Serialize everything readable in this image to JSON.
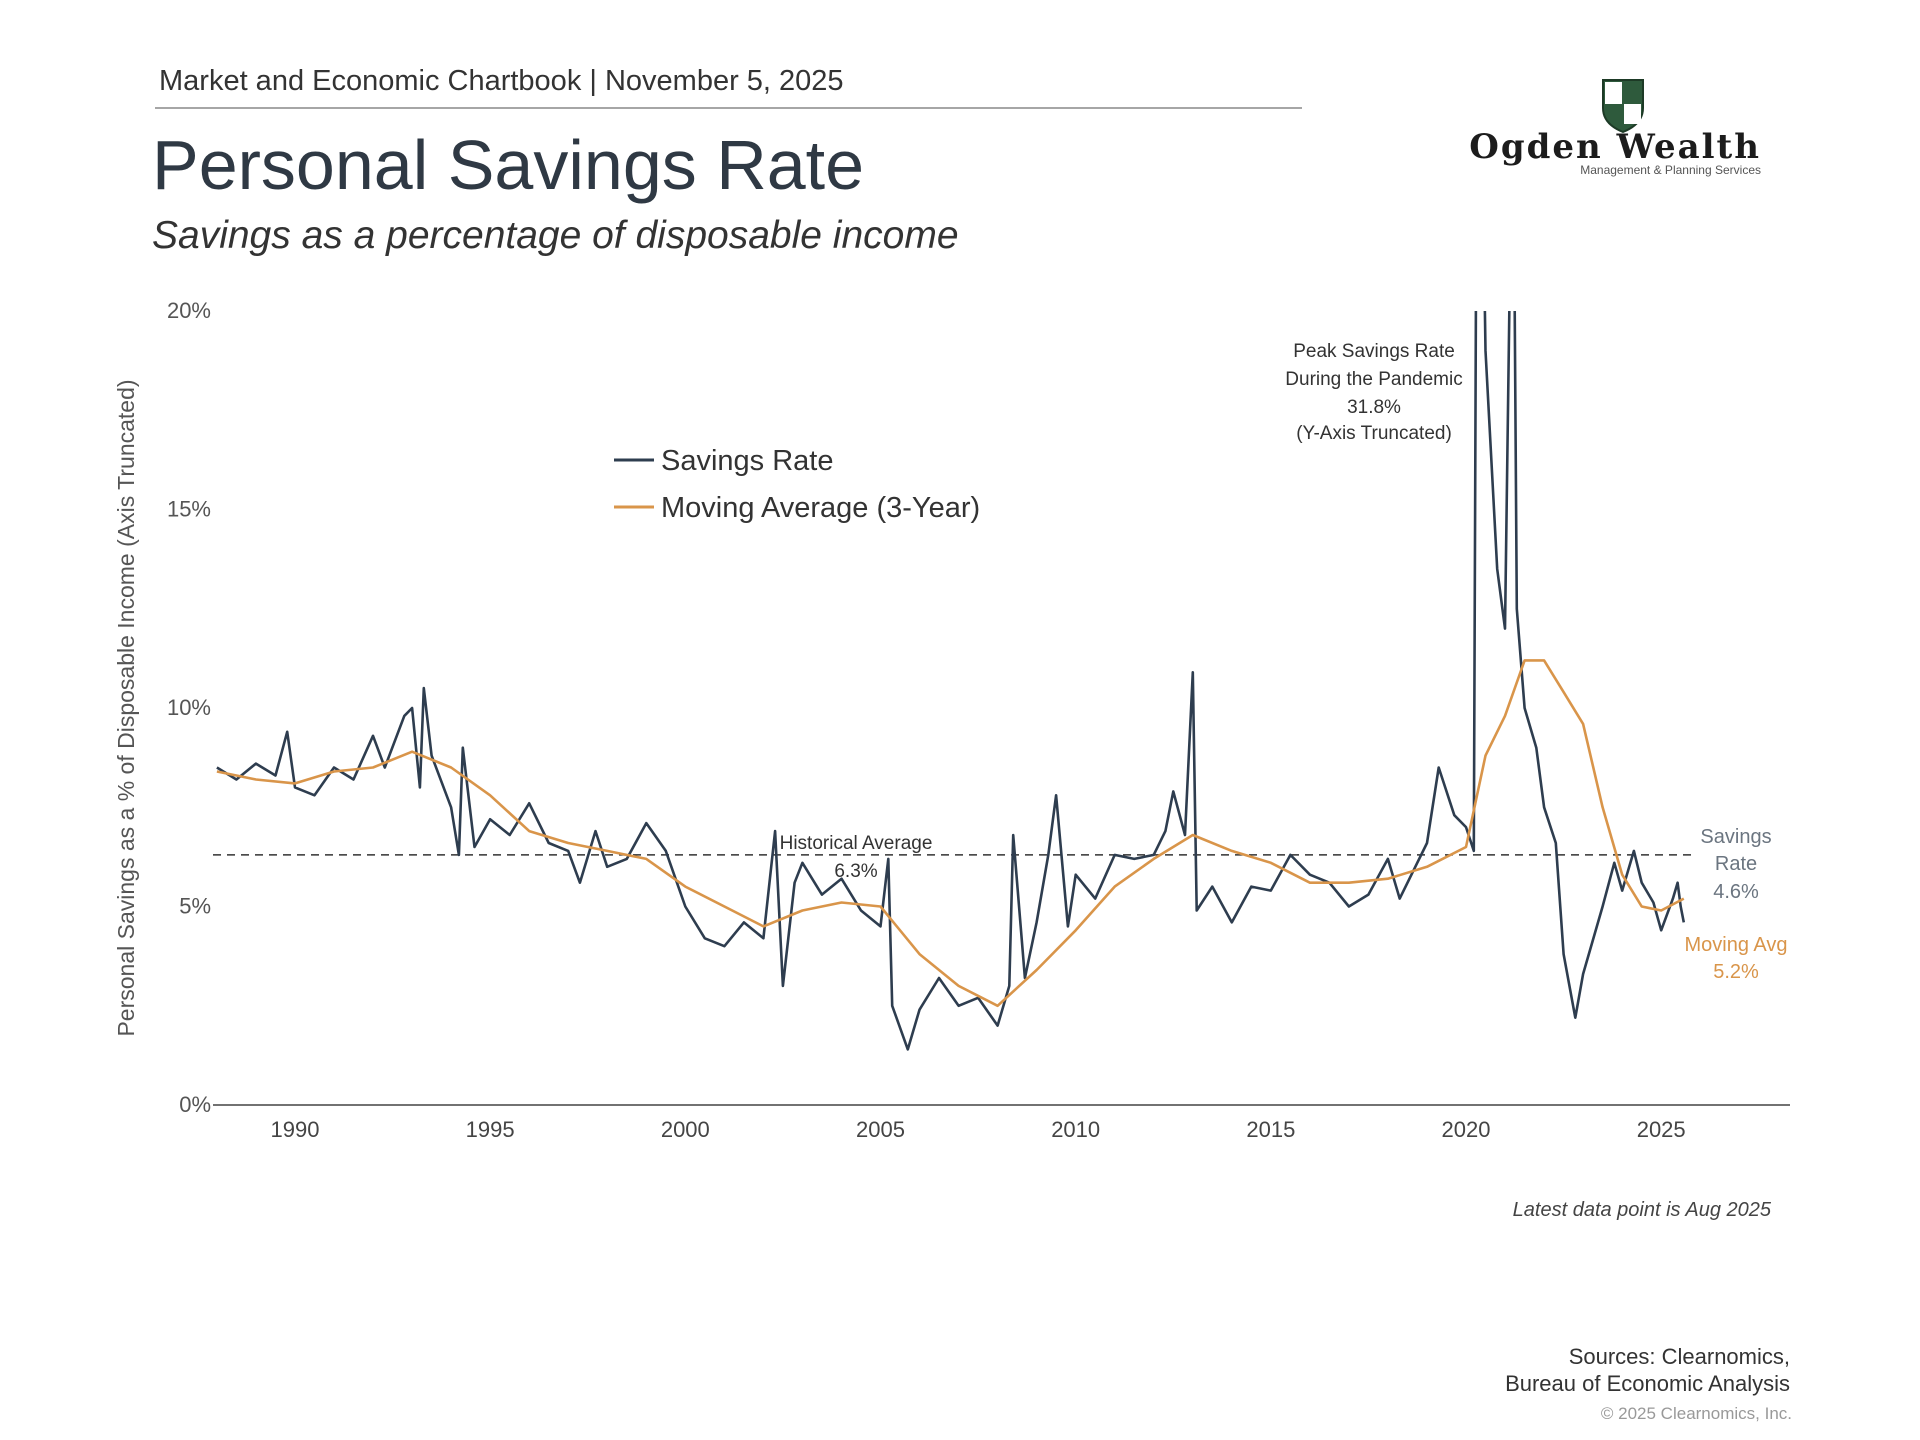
{
  "header": "Market and Economic Chartbook | November 5, 2025",
  "logo": {
    "name": "Ogden Wealth",
    "tagline": "Management & Planning Services"
  },
  "chart_data": {
    "type": "line",
    "title": "Personal Savings Rate",
    "subtitle": "Savings as a percentage of disposable income",
    "y_label": "Personal Savings as a % of Disposable Income (Axis Truncated)",
    "xlim": [
      1987.9,
      2028.3
    ],
    "xticks": [
      1990,
      1995,
      2000,
      2005,
      2010,
      2015,
      2020,
      2025
    ],
    "ylim": [
      0,
      20
    ],
    "yticks": [
      {
        "value": 0,
        "label": "0%"
      },
      {
        "value": 5,
        "label": "5%"
      },
      {
        "value": 10,
        "label": "10%"
      },
      {
        "value": 15,
        "label": "15%"
      },
      {
        "value": 20,
        "label": "20%"
      }
    ],
    "grid": false,
    "series": [
      {
        "name": "Savings Rate",
        "color": "#2e3d4f",
        "x": [
          1988.0,
          1988.5,
          1989.0,
          1989.5,
          1989.8,
          1990.0,
          1990.5,
          1991.0,
          1991.5,
          1992.0,
          1992.3,
          1992.8,
          1993.0,
          1993.2,
          1993.3,
          1993.5,
          1994.0,
          1994.2,
          1994.3,
          1994.6,
          1995.0,
          1995.5,
          1996.0,
          1996.5,
          1997.0,
          1997.3,
          1997.7,
          1998.0,
          1998.5,
          1999.0,
          1999.5,
          2000.0,
          2000.5,
          2001.0,
          2001.5,
          2002.0,
          2002.3,
          2002.5,
          2002.8,
          2003.0,
          2003.5,
          2004.0,
          2004.5,
          2005.0,
          2005.2,
          2005.3,
          2005.7,
          2006.0,
          2006.5,
          2007.0,
          2007.5,
          2008.0,
          2008.3,
          2008.4,
          2008.7,
          2009.0,
          2009.3,
          2009.5,
          2009.8,
          2010.0,
          2010.5,
          2011.0,
          2011.5,
          2012.0,
          2012.3,
          2012.5,
          2012.8,
          2013.0,
          2013.1,
          2013.5,
          2014.0,
          2014.5,
          2015.0,
          2015.5,
          2016.0,
          2016.5,
          2017.0,
          2017.5,
          2018.0,
          2018.3,
          2018.7,
          2019.0,
          2019.3,
          2019.7,
          2020.0,
          2020.2,
          2020.3,
          2020.5,
          2020.8,
          2021.0,
          2021.2,
          2021.3,
          2021.5,
          2021.8,
          2022.0,
          2022.3,
          2022.5,
          2022.8,
          2023.0,
          2023.5,
          2023.8,
          2024.0,
          2024.3,
          2024.5,
          2024.8,
          2025.0,
          2025.3,
          2025.42,
          2025.5,
          2025.58
        ],
        "values": [
          8.5,
          8.2,
          8.6,
          8.3,
          9.4,
          8.0,
          7.8,
          8.5,
          8.2,
          9.3,
          8.5,
          9.8,
          10.0,
          8.0,
          10.5,
          8.8,
          7.5,
          6.3,
          9.0,
          6.5,
          7.2,
          6.8,
          7.6,
          6.6,
          6.4,
          5.6,
          6.9,
          6.0,
          6.2,
          7.1,
          6.4,
          5.0,
          4.2,
          4.0,
          4.6,
          4.2,
          6.9,
          3.0,
          5.6,
          6.1,
          5.3,
          5.7,
          4.9,
          4.5,
          6.2,
          2.5,
          1.4,
          2.4,
          3.2,
          2.5,
          2.7,
          2.0,
          3.0,
          6.8,
          3.2,
          4.6,
          6.3,
          7.8,
          4.5,
          5.8,
          5.2,
          6.3,
          6.2,
          6.3,
          6.9,
          7.9,
          6.8,
          10.9,
          4.9,
          5.5,
          4.6,
          5.5,
          5.4,
          6.3,
          5.8,
          5.6,
          5.0,
          5.3,
          6.2,
          5.2,
          6.0,
          6.6,
          8.5,
          7.3,
          7.0,
          6.4,
          31.8,
          19.0,
          13.5,
          12.0,
          26.6,
          12.5,
          10.0,
          9.0,
          7.5,
          6.6,
          3.8,
          2.2,
          3.3,
          5.0,
          6.1,
          5.4,
          6.4,
          5.6,
          5.1,
          4.4,
          5.2,
          5.6,
          5.0,
          4.6
        ],
        "end_label": [
          "Savings",
          "Rate"
        ],
        "end_value_label": "4.6%"
      },
      {
        "name": "Moving Average (3-Year)",
        "color": "#d9954a",
        "x": [
          1988,
          1989,
          1990,
          1991,
          1992,
          1993,
          1994,
          1995,
          1996,
          1997,
          1998,
          1999,
          2000,
          2001,
          2002,
          2003,
          2004,
          2005,
          2006,
          2007,
          2008,
          2009,
          2010,
          2011,
          2012,
          2013,
          2014,
          2015,
          2016,
          2017,
          2018,
          2019,
          2020,
          2020.5,
          2021,
          2021.5,
          2022,
          2022.5,
          2023,
          2023.5,
          2024,
          2024.5,
          2025,
          2025.58
        ],
        "values": [
          8.4,
          8.2,
          8.1,
          8.4,
          8.5,
          8.9,
          8.5,
          7.8,
          6.9,
          6.6,
          6.4,
          6.2,
          5.5,
          5.0,
          4.5,
          4.9,
          5.1,
          5.0,
          3.8,
          3.0,
          2.5,
          3.4,
          4.4,
          5.5,
          6.2,
          6.8,
          6.4,
          6.1,
          5.6,
          5.6,
          5.7,
          6.0,
          6.5,
          8.8,
          9.8,
          11.2,
          11.2,
          10.4,
          9.6,
          7.5,
          5.8,
          5.0,
          4.9,
          5.2
        ],
        "end_label": [
          "Moving Avg"
        ],
        "end_value_label": "5.2%"
      }
    ],
    "historical_average": {
      "value": 6.3,
      "label": "Historical Average",
      "value_label": "6.3%"
    },
    "peak_annotation": [
      "Peak Savings Rate",
      "During the Pandemic",
      "31.8%",
      "(Y-Axis Truncated)"
    ],
    "footnote": "Latest data point is Aug 2025"
  },
  "sources": [
    "Sources: Clearnomics,",
    "Bureau of Economic Analysis"
  ],
  "copyright": "© 2025 Clearnomics, Inc."
}
